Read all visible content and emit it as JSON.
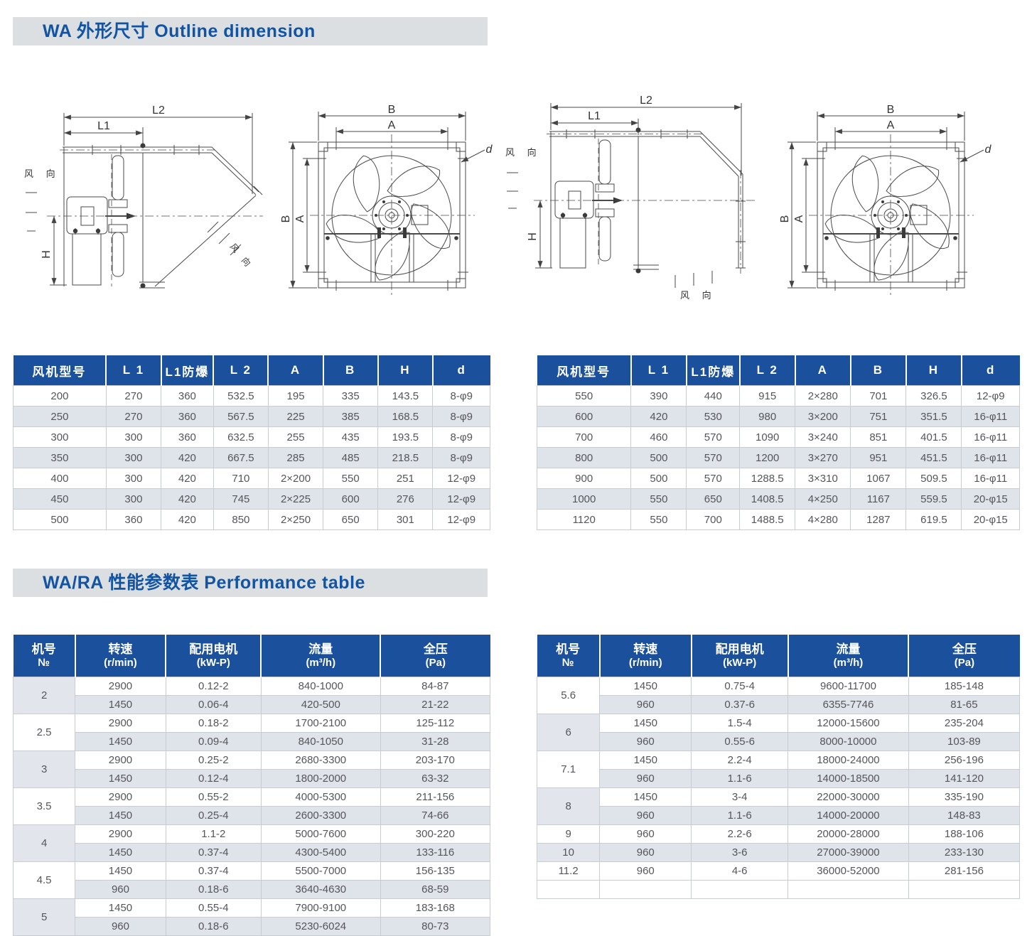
{
  "sections": {
    "outline_title": "WA 外形尺寸 Outline dimension",
    "performance_title": "WA/RA 性能参数表 Performance table"
  },
  "dim_labels": {
    "l1": "L1",
    "l2": "L2",
    "a": "A",
    "b": "B",
    "h": "H",
    "d": "d",
    "wind": "风 向"
  },
  "dim_table": {
    "headers": [
      "风机型号",
      "L 1",
      "L1防爆",
      "L 2",
      "A",
      "B",
      "H",
      "d"
    ],
    "left_rows": [
      [
        "200",
        "270",
        "360",
        "532.5",
        "195",
        "335",
        "143.5",
        "8-φ9"
      ],
      [
        "250",
        "270",
        "360",
        "567.5",
        "225",
        "385",
        "168.5",
        "8-φ9"
      ],
      [
        "300",
        "300",
        "360",
        "632.5",
        "255",
        "435",
        "193.5",
        "8-φ9"
      ],
      [
        "350",
        "300",
        "420",
        "667.5",
        "285",
        "485",
        "218.5",
        "8-φ9"
      ],
      [
        "400",
        "300",
        "420",
        "710",
        "2×200",
        "550",
        "251",
        "12-φ9"
      ],
      [
        "450",
        "300",
        "420",
        "745",
        "2×225",
        "600",
        "276",
        "12-φ9"
      ],
      [
        "500",
        "360",
        "420",
        "850",
        "2×250",
        "650",
        "301",
        "12-φ9"
      ]
    ],
    "right_rows": [
      [
        "550",
        "390",
        "440",
        "915",
        "2×280",
        "701",
        "326.5",
        "12-φ9"
      ],
      [
        "600",
        "420",
        "530",
        "980",
        "3×200",
        "751",
        "351.5",
        "16-φ11"
      ],
      [
        "700",
        "460",
        "570",
        "1090",
        "3×240",
        "851",
        "401.5",
        "16-φ11"
      ],
      [
        "800",
        "500",
        "570",
        "1200",
        "3×270",
        "951",
        "451.5",
        "16-φ11"
      ],
      [
        "900",
        "500",
        "570",
        "1288.5",
        "3×310",
        "1067",
        "509.5",
        "16-φ11"
      ],
      [
        "1000",
        "550",
        "650",
        "1408.5",
        "4×250",
        "1167",
        "559.5",
        "20-φ15"
      ],
      [
        "1120",
        "550",
        "700",
        "1488.5",
        "4×280",
        "1287",
        "619.5",
        "20-φ15"
      ]
    ]
  },
  "perf_table": {
    "headers": [
      [
        "机号",
        "№"
      ],
      [
        "转速",
        "(r/min)"
      ],
      [
        "配用电机",
        "(kW-P)"
      ],
      [
        "流量",
        "(m³/h)"
      ],
      [
        "全压",
        "(Pa)"
      ]
    ],
    "left_groups": [
      {
        "no": "2",
        "rows": [
          [
            "2900",
            "0.12-2",
            "840-1000",
            "84-87"
          ],
          [
            "1450",
            "0.06-4",
            "420-500",
            "21-22"
          ]
        ]
      },
      {
        "no": "2.5",
        "rows": [
          [
            "2900",
            "0.18-2",
            "1700-2100",
            "125-112"
          ],
          [
            "1450",
            "0.09-4",
            "840-1050",
            "31-28"
          ]
        ]
      },
      {
        "no": "3",
        "rows": [
          [
            "2900",
            "0.25-2",
            "2680-3300",
            "203-170"
          ],
          [
            "1450",
            "0.12-4",
            "1800-2000",
            "63-32"
          ]
        ]
      },
      {
        "no": "3.5",
        "rows": [
          [
            "2900",
            "0.55-2",
            "4000-5300",
            "211-156"
          ],
          [
            "1450",
            "0.25-4",
            "2600-3300",
            "74-66"
          ]
        ]
      },
      {
        "no": "4",
        "rows": [
          [
            "2900",
            "1.1-2",
            "5000-7600",
            "300-220"
          ],
          [
            "1450",
            "0.37-4",
            "4300-5400",
            "133-116"
          ]
        ]
      },
      {
        "no": "4.5",
        "rows": [
          [
            "1450",
            "0.37-4",
            "5500-7000",
            "156-135"
          ],
          [
            "960",
            "0.18-6",
            "3640-4630",
            "68-59"
          ]
        ]
      },
      {
        "no": "5",
        "rows": [
          [
            "1450",
            "0.55-4",
            "7900-9100",
            "183-168"
          ],
          [
            "960",
            "0.18-6",
            "5230-6024",
            "80-73"
          ]
        ]
      }
    ],
    "right_groups": [
      {
        "no": "5.6",
        "rows": [
          [
            "1450",
            "0.75-4",
            "9600-11700",
            "185-148"
          ],
          [
            "960",
            "0.37-6",
            "6355-7746",
            "81-65"
          ]
        ]
      },
      {
        "no": "6",
        "rows": [
          [
            "1450",
            "1.5-4",
            "12000-15600",
            "235-204"
          ],
          [
            "960",
            "0.55-6",
            "8000-10000",
            "103-89"
          ]
        ]
      },
      {
        "no": "7.1",
        "rows": [
          [
            "1450",
            "2.2-4",
            "18000-24000",
            "256-196"
          ],
          [
            "960",
            "1.1-6",
            "14000-18500",
            "141-120"
          ]
        ]
      },
      {
        "no": "8",
        "rows": [
          [
            "1450",
            "3-4",
            "22000-30000",
            "335-190"
          ],
          [
            "960",
            "1.1-6",
            "14000-20000",
            "148-83"
          ]
        ]
      },
      {
        "no": "9",
        "rows": [
          [
            "960",
            "2.2-6",
            "20000-28000",
            "188-106"
          ]
        ]
      },
      {
        "no": "10",
        "rows": [
          [
            "960",
            "3-6",
            "27000-39000",
            "233-130"
          ]
        ]
      },
      {
        "no": "11.2",
        "rows": [
          [
            "960",
            "4-6",
            "36000-52000",
            "281-156"
          ]
        ]
      },
      {
        "no": "",
        "rows": [
          [
            "",
            "",
            "",
            ""
          ]
        ]
      }
    ]
  },
  "colors": {
    "header_blue": "#1b509c",
    "title_blue": "#1254a4",
    "row_alt": "#dfe3ea",
    "bar_bg": "#dcdfe2"
  }
}
